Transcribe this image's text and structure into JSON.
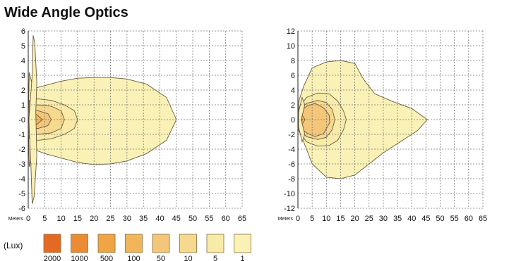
{
  "title": "Wide Angle Optics",
  "chart_data": [
    {
      "type": "contour",
      "xlabel": "Meters",
      "xlim": [
        0,
        65
      ],
      "ylim": [
        -6,
        6
      ],
      "xticks": [
        0,
        5,
        10,
        15,
        20,
        25,
        30,
        35,
        40,
        45,
        50,
        55,
        60,
        65
      ],
      "yticks": [
        "6",
        "5",
        "4",
        "3",
        "2",
        "1",
        "-0",
        "-1",
        "-2",
        "-3",
        "-4",
        "-5",
        "-6"
      ],
      "grid": true,
      "levels": [
        {
          "lux": 1,
          "points": [
            [
              0.3,
              3.2
            ],
            [
              1.5,
              2.1
            ],
            [
              5,
              2.3
            ],
            [
              10,
              2.6
            ],
            [
              15,
              2.8
            ],
            [
              20,
              2.85
            ],
            [
              25,
              2.85
            ],
            [
              30,
              2.75
            ],
            [
              36,
              2.4
            ],
            [
              42,
              1.5
            ],
            [
              45,
              0
            ],
            [
              42,
              -1.4
            ],
            [
              36,
              -2.3
            ],
            [
              30,
              -2.8
            ],
            [
              25,
              -3.0
            ],
            [
              20,
              -3.05
            ],
            [
              15,
              -2.9
            ],
            [
              10,
              -2.6
            ],
            [
              5,
              -2.3
            ],
            [
              1.5,
              -2.0
            ],
            [
              0.3,
              -3.2
            ],
            [
              0,
              0
            ]
          ]
        },
        {
          "lux": 5,
          "points": [
            [
              0.3,
              1.3
            ],
            [
              3,
              1.4
            ],
            [
              7,
              1.3
            ],
            [
              11,
              1.0
            ],
            [
              14,
              0.6
            ],
            [
              15,
              0
            ],
            [
              14,
              -0.6
            ],
            [
              11,
              -1.0
            ],
            [
              7,
              -1.3
            ],
            [
              3,
              -1.4
            ],
            [
              0.3,
              -1.3
            ]
          ]
        },
        {
          "lux": 10,
          "points": [
            [
              0.3,
              0.9
            ],
            [
              3,
              1.0
            ],
            [
              7,
              0.9
            ],
            [
              10,
              0.6
            ],
            [
              11,
              0
            ],
            [
              10,
              -0.6
            ],
            [
              7,
              -0.9
            ],
            [
              3,
              -1.0
            ],
            [
              0.3,
              -0.9
            ]
          ]
        },
        {
          "lux": 50,
          "points": [
            [
              0.3,
              0.6
            ],
            [
              3,
              0.6
            ],
            [
              6,
              0.4
            ],
            [
              7,
              0
            ],
            [
              6,
              -0.4
            ],
            [
              3,
              -0.6
            ],
            [
              0.3,
              -0.6
            ]
          ]
        },
        {
          "lux": 100,
          "points": [
            [
              0.3,
              0.35
            ],
            [
              2.5,
              0.35
            ],
            [
              4.3,
              0
            ],
            [
              2.5,
              -0.35
            ],
            [
              0.3,
              -0.35
            ]
          ]
        },
        {
          "lux": 500,
          "points": [
            [
              0.3,
              0.2
            ],
            [
              1.6,
              0.2
            ],
            [
              2.4,
              0
            ],
            [
              1.6,
              -0.2
            ],
            [
              0.3,
              -0.2
            ]
          ]
        },
        {
          "lux": 1000,
          "points": [
            [
              0.4,
              0.1
            ],
            [
              1.1,
              0.1
            ],
            [
              1.5,
              0
            ],
            [
              1.1,
              -0.1
            ],
            [
              0.4,
              -0.1
            ]
          ]
        }
      ],
      "fringe": {
        "lux": 1,
        "points": [
          [
            0.2,
            0
          ],
          [
            1.2,
            3
          ],
          [
            1.5,
            5.7
          ],
          [
            2,
            5.2
          ],
          [
            2.6,
            2.5
          ],
          [
            2.3,
            0.5
          ],
          [
            2.6,
            -2.5
          ],
          [
            1.8,
            -5.2
          ],
          [
            1.2,
            -5.7
          ],
          [
            0.8,
            -3
          ],
          [
            0.2,
            0
          ]
        ]
      }
    },
    {
      "type": "contour",
      "xlabel": "Meters",
      "xlim": [
        0,
        65
      ],
      "ylim": [
        -12,
        12
      ],
      "xticks": [
        0,
        5,
        10,
        15,
        20,
        25,
        30,
        35,
        40,
        45,
        50,
        55,
        60,
        65
      ],
      "yticks": [
        "12",
        "10",
        "8",
        "6",
        "4",
        "2",
        "0",
        "-2",
        "-4",
        "-6",
        "-8",
        "-10",
        "-12"
      ],
      "grid": true,
      "levels": [
        {
          "lux": 1,
          "points": [
            [
              0.3,
              2.5
            ],
            [
              2,
              4.5
            ],
            [
              5,
              7
            ],
            [
              10,
              7.8
            ],
            [
              15,
              8
            ],
            [
              20,
              7.6
            ],
            [
              23,
              5.5
            ],
            [
              27,
              3.5
            ],
            [
              33,
              2.5
            ],
            [
              40,
              1.5
            ],
            [
              45.5,
              0
            ],
            [
              42,
              -1.5
            ],
            [
              36,
              -3
            ],
            [
              30,
              -4.5
            ],
            [
              25,
              -6
            ],
            [
              20,
              -7.5
            ],
            [
              15,
              -8
            ],
            [
              10,
              -7.8
            ],
            [
              5,
              -6
            ],
            [
              2,
              -3
            ],
            [
              0.3,
              -1.5
            ]
          ]
        },
        {
          "lux": 5,
          "points": [
            [
              0.3,
              1.5
            ],
            [
              3,
              3
            ],
            [
              7,
              3.6
            ],
            [
              11,
              3.5
            ],
            [
              14,
              2.5
            ],
            [
              16,
              1.2
            ],
            [
              17,
              0
            ],
            [
              16,
              -1.4
            ],
            [
              14,
              -2.8
            ],
            [
              11,
              -3.5
            ],
            [
              7,
              -3.6
            ],
            [
              3,
              -3
            ],
            [
              0.3,
              -1.5
            ]
          ]
        },
        {
          "lux": 10,
          "points": [
            [
              0.3,
              1.2
            ],
            [
              3,
              2.2
            ],
            [
              7,
              2.6
            ],
            [
              10,
              2.3
            ],
            [
              12,
              1.4
            ],
            [
              13,
              0
            ],
            [
              12,
              -1.4
            ],
            [
              10,
              -2.4
            ],
            [
              7,
              -2.7
            ],
            [
              3,
              -2.3
            ],
            [
              0.3,
              -1.2
            ]
          ]
        },
        {
          "lux": 50,
          "points": [
            [
              0.3,
              0.9
            ],
            [
              3,
              1.8
            ],
            [
              6,
              2.2
            ],
            [
              9,
              1.6
            ],
            [
              11,
              0.6
            ],
            [
              11.2,
              -0.4
            ],
            [
              9,
              -1.9
            ],
            [
              6,
              -2.3
            ],
            [
              3,
              -1.8
            ],
            [
              0.3,
              -0.9
            ]
          ]
        },
        {
          "lux": 100,
          "points": [
            [
              0.3,
              0.4
            ],
            [
              1.5,
              0.6
            ],
            [
              2.5,
              0
            ],
            [
              1.5,
              -0.6
            ],
            [
              0.3,
              -0.4
            ]
          ]
        },
        {
          "lux": 500,
          "points": [
            [
              0.3,
              0.25
            ],
            [
              1,
              0.3
            ],
            [
              1.6,
              0
            ],
            [
              1,
              -0.3
            ],
            [
              0.3,
              -0.25
            ]
          ]
        },
        {
          "lux": 1000,
          "points": [
            [
              0.4,
              0.12
            ],
            [
              0.9,
              0.12
            ],
            [
              1.2,
              0
            ],
            [
              0.9,
              -0.12
            ],
            [
              0.4,
              -0.12
            ]
          ]
        }
      ],
      "fringe": {
        "lux": 1,
        "points": [
          [
            0.2,
            1
          ],
          [
            1,
            2.2
          ],
          [
            1.5,
            3
          ],
          [
            2.4,
            2
          ],
          [
            1.2,
            0
          ],
          [
            2.4,
            -2
          ],
          [
            1.5,
            -3
          ],
          [
            1,
            -2.2
          ],
          [
            0.2,
            -1
          ]
        ]
      }
    }
  ],
  "legend": {
    "label": "(Lux)",
    "items": [
      {
        "value": "2000",
        "color": "#e46a24"
      },
      {
        "value": "1000",
        "color": "#eb8c34"
      },
      {
        "value": "500",
        "color": "#efa446"
      },
      {
        "value": "100",
        "color": "#f2b65a"
      },
      {
        "value": "50",
        "color": "#f4c679"
      },
      {
        "value": "10",
        "color": "#f6d88e"
      },
      {
        "value": "5",
        "color": "#f7eba7"
      },
      {
        "value": "1",
        "color": "#f9f1b6"
      }
    ]
  }
}
